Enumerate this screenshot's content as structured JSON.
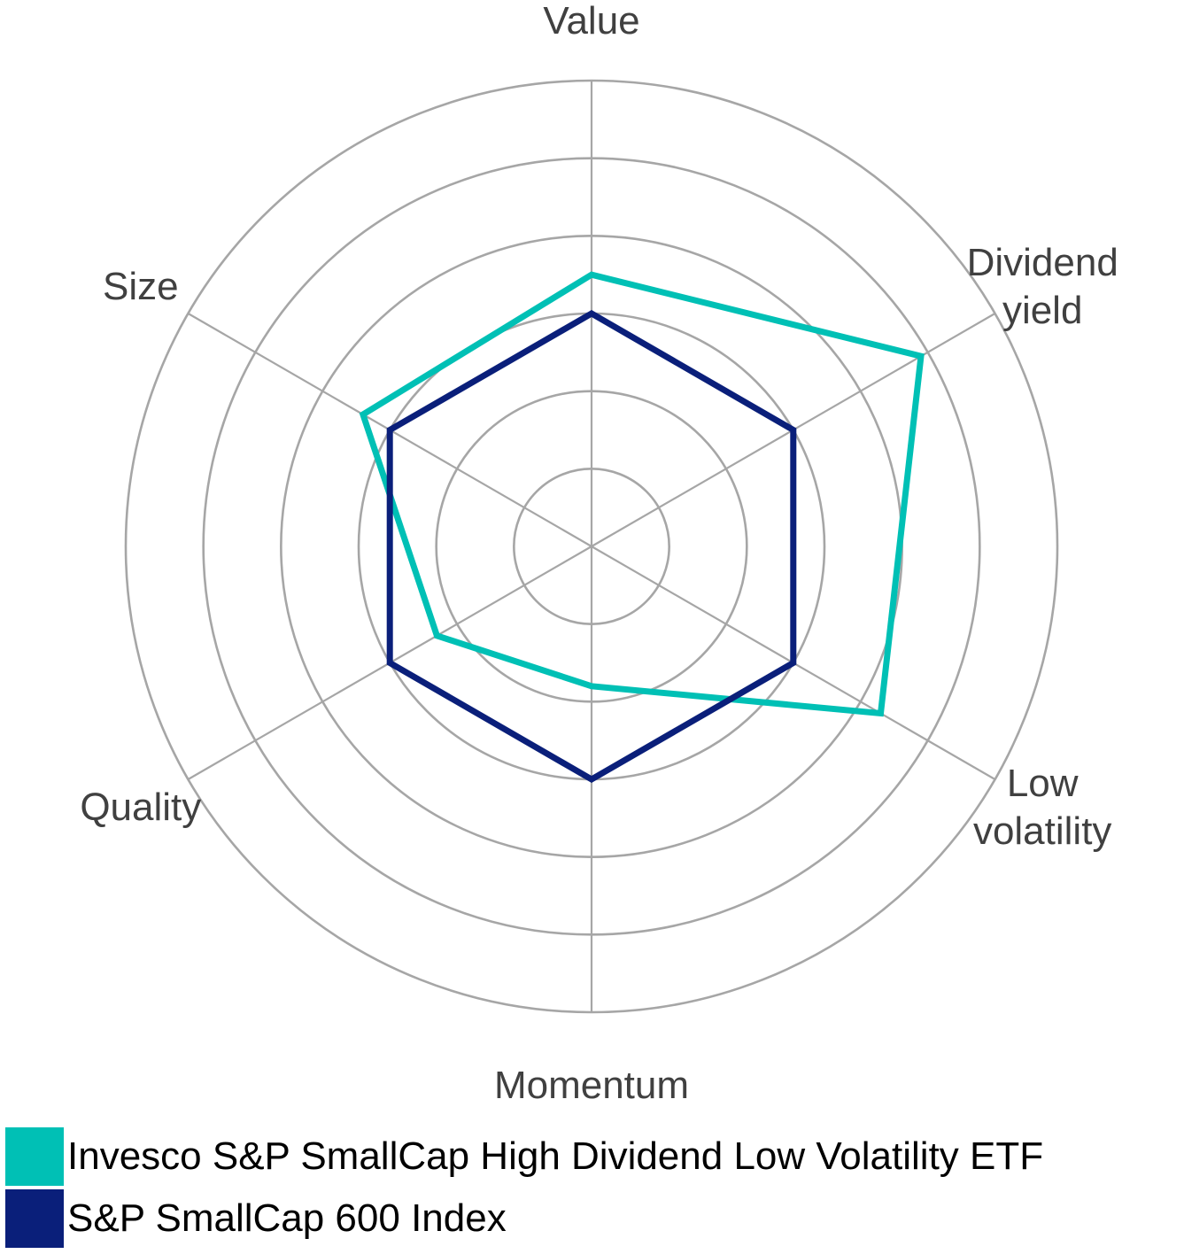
{
  "chart_data": {
    "type": "radar",
    "axes": [
      {
        "name": "value",
        "label_lines": [
          "Value"
        ]
      },
      {
        "name": "dividend-yield",
        "label_lines": [
          "Dividend",
          "yield"
        ]
      },
      {
        "name": "low-volatility",
        "label_lines": [
          "Low",
          "volatility"
        ]
      },
      {
        "name": "momentum",
        "label_lines": [
          "Momentum"
        ]
      },
      {
        "name": "quality",
        "label_lines": [
          "Quality"
        ]
      },
      {
        "name": "size",
        "label_lines": [
          "Size"
        ]
      }
    ],
    "range": [
      0,
      6
    ],
    "rings": [
      1,
      2,
      3,
      4,
      5,
      6
    ],
    "grid": true,
    "legend_position": "bottom-left",
    "series": [
      {
        "name": "Invesco S&P SmallCap High Dividend Low Volatility ETF",
        "color": "#00c0b5",
        "values": [
          3.5,
          4.9,
          4.3,
          1.8,
          2.3,
          3.4
        ]
      },
      {
        "name": "S&P SmallCap 600 Index",
        "color": "#0a1f7a",
        "values": [
          3,
          3,
          3,
          3,
          3,
          3
        ]
      }
    ]
  }
}
